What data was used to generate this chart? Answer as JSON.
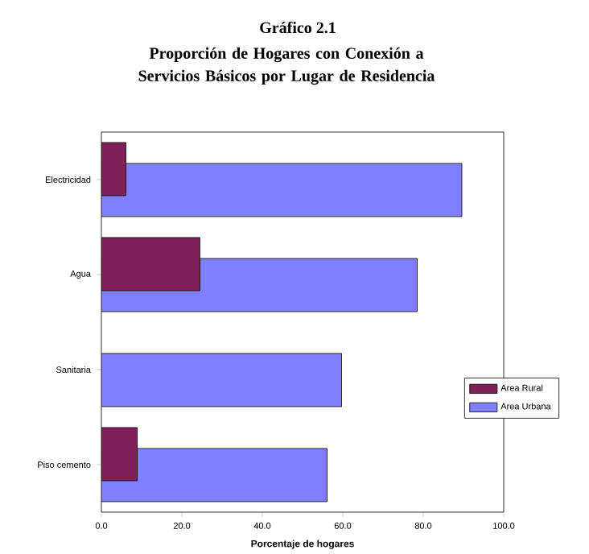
{
  "chart_data": {
    "type": "bar",
    "orientation": "horizontal",
    "title": "Gráfico 2.1",
    "subtitle": "Proporción de Hogares con Conexión a Servicios Básicos por Lugar de Residencia",
    "xlabel": "Porcentaje de hogares",
    "categories": [
      "Electricidad",
      "Agua",
      "Sanitaria",
      "Piso cemento"
    ],
    "series": [
      {
        "name": "Area Rural",
        "color": "#7f2059",
        "values": [
          6.1,
          24.5,
          null,
          8.9
        ]
      },
      {
        "name": "Area Urbana",
        "color": "#8080ff",
        "values": [
          89.6,
          78.5,
          59.7,
          56.1
        ]
      }
    ],
    "xlim": [
      0,
      100
    ],
    "xticks": [
      {
        "value": 0,
        "label": "0.0"
      },
      {
        "value": 20,
        "label": "20.0"
      },
      {
        "value": 40,
        "label": "40.0"
      },
      {
        "value": 60,
        "label": "60.0"
      },
      {
        "value": 80,
        "label": "80.0"
      },
      {
        "value": 100,
        "label": "100.0"
      }
    ],
    "legend": "right",
    "grid": false
  }
}
